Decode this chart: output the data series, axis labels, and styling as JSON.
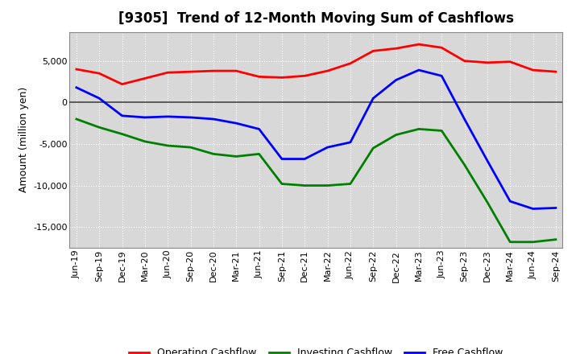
{
  "title": "[9305]  Trend of 12-Month Moving Sum of Cashflows",
  "ylabel": "Amount (million yen)",
  "xlabels": [
    "Jun-19",
    "Sep-19",
    "Dec-19",
    "Mar-20",
    "Jun-20",
    "Sep-20",
    "Dec-20",
    "Mar-21",
    "Jun-21",
    "Sep-21",
    "Dec-21",
    "Mar-22",
    "Jun-22",
    "Sep-22",
    "Dec-22",
    "Mar-23",
    "Jun-23",
    "Sep-23",
    "Dec-23",
    "Mar-24",
    "Jun-24",
    "Sep-24"
  ],
  "operating": [
    4000,
    3500,
    2200,
    2900,
    3600,
    3700,
    3800,
    3800,
    3100,
    3000,
    3200,
    3800,
    4700,
    6200,
    6500,
    7000,
    6600,
    5000,
    4800,
    4900,
    3900,
    3700
  ],
  "investing": [
    -2000,
    -3000,
    -3800,
    -4700,
    -5200,
    -5400,
    -6200,
    -6500,
    -6200,
    -9800,
    -10000,
    -10000,
    -9800,
    -5500,
    -3900,
    -3200,
    -3400,
    -7500,
    -12000,
    -16800,
    -16800,
    -16500
  ],
  "free": [
    1800,
    500,
    -1600,
    -1800,
    -1700,
    -1800,
    -2000,
    -2500,
    -3200,
    -6800,
    -6800,
    -5400,
    -4800,
    500,
    2700,
    3900,
    3200,
    -2000,
    -7000,
    -11900,
    -12800,
    -12700
  ],
  "ylim": [
    -17500,
    8500
  ],
  "yticks": [
    -15000,
    -10000,
    -5000,
    0,
    5000
  ],
  "operating_color": "#ff0000",
  "investing_color": "#008000",
  "free_color": "#0000ff",
  "bg_color": "#ffffff",
  "plot_bg_color": "#d8d8d8",
  "grid_color": "#ffffff",
  "zero_line_color": "#444444",
  "spine_color": "#888888",
  "linewidth": 2.0,
  "title_fontsize": 12,
  "tick_fontsize": 8,
  "ylabel_fontsize": 9,
  "legend_labels": [
    "Operating Cashflow",
    "Investing Cashflow",
    "Free Cashflow"
  ]
}
